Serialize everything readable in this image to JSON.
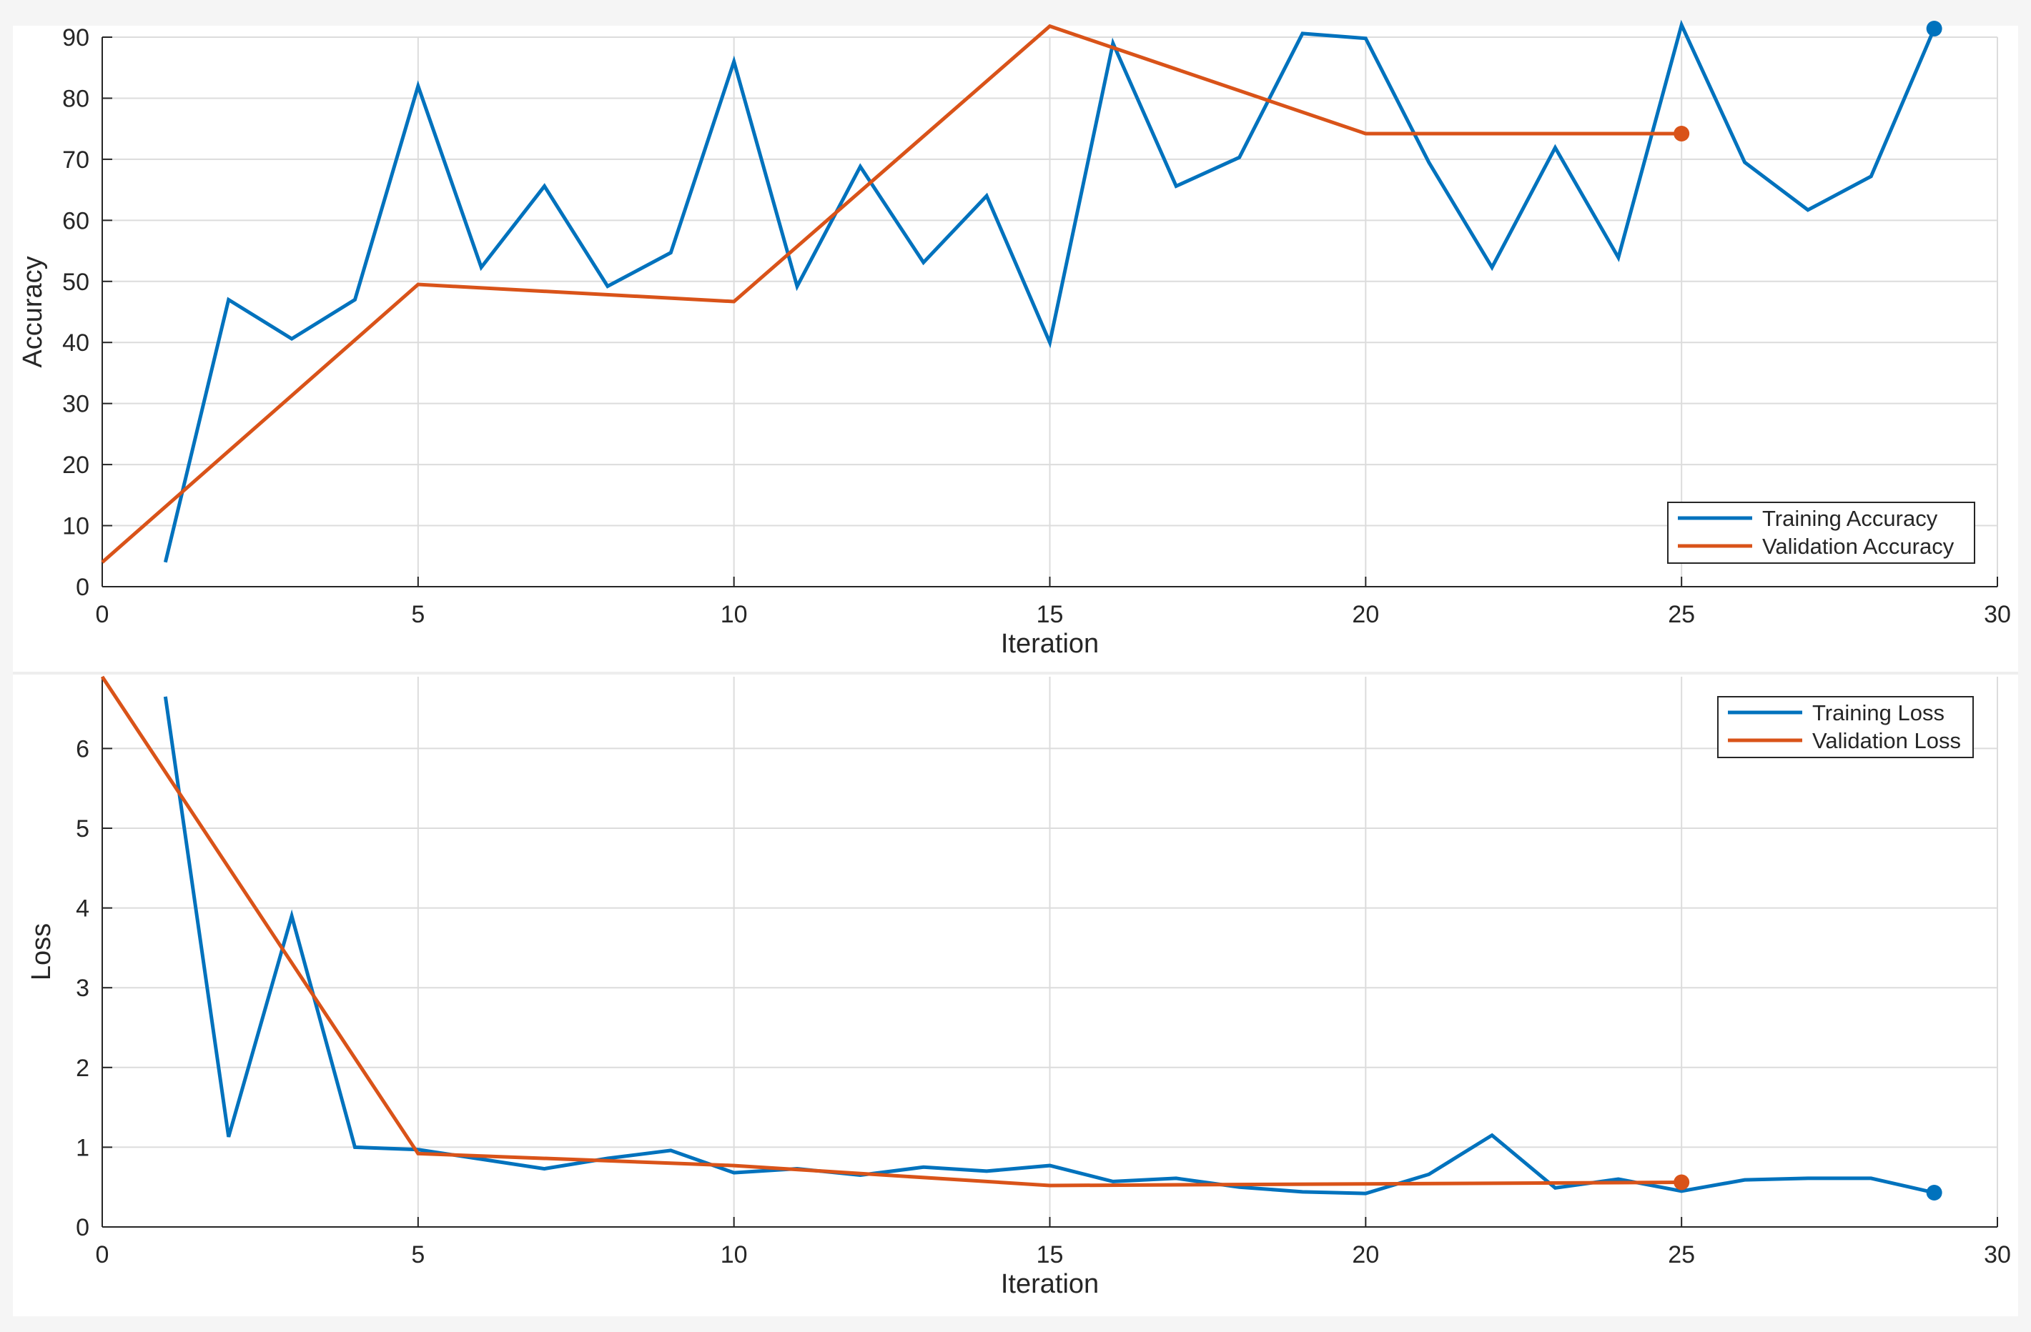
{
  "chart_data": [
    {
      "type": "line",
      "title": "",
      "xlabel": "Iteration",
      "ylabel": "Accuracy",
      "xlim": [
        0,
        30
      ],
      "ylim": [
        0,
        90
      ],
      "xticks": [
        0,
        5,
        10,
        15,
        20,
        25,
        30
      ],
      "yticks": [
        0,
        10,
        20,
        30,
        40,
        50,
        60,
        70,
        80,
        90
      ],
      "grid": true,
      "legend_position": "bottom-right",
      "series": [
        {
          "name": "Training Accuracy",
          "color": "#0072BD",
          "x": [
            1,
            2,
            3,
            4,
            5,
            6,
            7,
            8,
            9,
            10,
            11,
            12,
            13,
            14,
            15,
            16,
            17,
            18,
            19,
            20,
            21,
            22,
            23,
            24,
            25,
            26,
            27,
            28,
            29
          ],
          "y": [
            4,
            47,
            40.6,
            47,
            82,
            52.3,
            65.6,
            49.2,
            54.7,
            86,
            49.2,
            68.8,
            53.1,
            64,
            40,
            89,
            65.6,
            70.3,
            90.6,
            89.8,
            69.5,
            52.3,
            71.9,
            53.9,
            92,
            69.5,
            61.7,
            67.2,
            91.4
          ],
          "end_marker": true
        },
        {
          "name": "Validation Accuracy",
          "color": "#D95319",
          "x": [
            0,
            5,
            10,
            15,
            20,
            25
          ],
          "y": [
            4,
            49.5,
            46.7,
            91.8,
            74.2,
            74.2
          ],
          "end_marker": true
        }
      ]
    },
    {
      "type": "line",
      "title": "",
      "xlabel": "Iteration",
      "ylabel": "Loss",
      "xlim": [
        0,
        30
      ],
      "ylim": [
        0,
        6.9
      ],
      "xticks": [
        0,
        5,
        10,
        15,
        20,
        25,
        30
      ],
      "yticks": [
        0,
        1,
        2,
        3,
        4,
        5,
        6
      ],
      "grid": true,
      "legend_position": "top-right",
      "series": [
        {
          "name": "Training Loss",
          "color": "#0072BD",
          "x": [
            1,
            2,
            3,
            4,
            5,
            6,
            7,
            8,
            9,
            10,
            11,
            12,
            13,
            14,
            15,
            16,
            17,
            18,
            19,
            20,
            21,
            22,
            23,
            24,
            25,
            26,
            27,
            28,
            29
          ],
          "y": [
            6.65,
            1.13,
            3.9,
            1.0,
            0.97,
            0.85,
            0.73,
            0.86,
            0.96,
            0.68,
            0.73,
            0.65,
            0.75,
            0.7,
            0.77,
            0.57,
            0.61,
            0.5,
            0.44,
            0.42,
            0.66,
            1.15,
            0.49,
            0.6,
            0.45,
            0.59,
            0.61,
            0.61,
            0.43
          ],
          "end_marker": true
        },
        {
          "name": "Validation Loss",
          "color": "#D95319",
          "x": [
            0,
            5,
            10,
            15,
            20,
            25
          ],
          "y": [
            6.9,
            0.92,
            0.77,
            0.52,
            0.54,
            0.56
          ],
          "end_marker": true
        }
      ]
    }
  ]
}
